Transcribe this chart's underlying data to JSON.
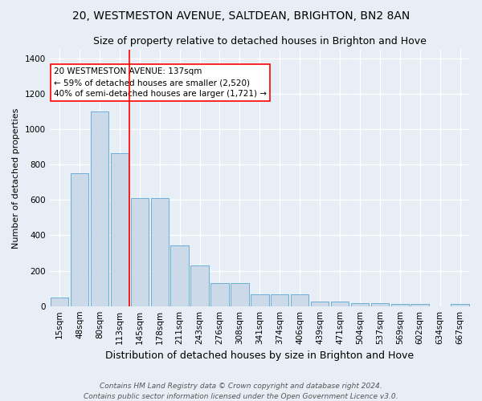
{
  "title": "20, WESTMESTON AVENUE, SALTDEAN, BRIGHTON, BN2 8AN",
  "subtitle": "Size of property relative to detached houses in Brighton and Hove",
  "xlabel": "Distribution of detached houses by size in Brighton and Hove",
  "ylabel": "Number of detached properties",
  "footer_line1": "Contains HM Land Registry data © Crown copyright and database right 2024.",
  "footer_line2": "Contains public sector information licensed under the Open Government Licence v3.0.",
  "bar_labels": [
    "15sqm",
    "48sqm",
    "80sqm",
    "113sqm",
    "145sqm",
    "178sqm",
    "211sqm",
    "243sqm",
    "276sqm",
    "308sqm",
    "341sqm",
    "374sqm",
    "406sqm",
    "439sqm",
    "471sqm",
    "504sqm",
    "537sqm",
    "569sqm",
    "602sqm",
    "634sqm",
    "667sqm"
  ],
  "bar_values": [
    47,
    750,
    1100,
    865,
    610,
    610,
    345,
    228,
    130,
    130,
    65,
    65,
    65,
    27,
    27,
    17,
    17,
    10,
    10,
    0,
    10
  ],
  "bar_color": "#ccd9e8",
  "bar_edge_color": "#6baed6",
  "vline_x": 3.5,
  "vline_color": "red",
  "annotation_text": "20 WESTMESTON AVENUE: 137sqm\n← 59% of detached houses are smaller (2,520)\n40% of semi-detached houses are larger (1,721) →",
  "annotation_box_facecolor": "white",
  "annotation_box_edgecolor": "red",
  "ylim": [
    0,
    1450
  ],
  "yticks": [
    0,
    200,
    400,
    600,
    800,
    1000,
    1200,
    1400
  ],
  "bg_color": "#e8eef5",
  "plot_bg_color": "#e8eef5",
  "grid_color": "white",
  "title_fontsize": 10,
  "subtitle_fontsize": 9,
  "ylabel_fontsize": 8,
  "xlabel_fontsize": 9,
  "tick_fontsize": 7.5,
  "annotation_fontsize": 7.5,
  "footer_fontsize": 6.5
}
